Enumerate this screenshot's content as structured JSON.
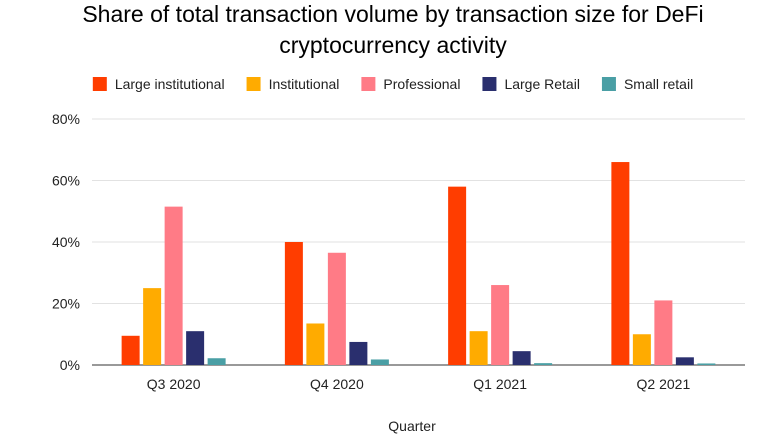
{
  "chart_data": {
    "type": "bar",
    "title_line1": "Share of total transaction volume by transaction size for DeFi",
    "title_line2": "cryptocurrency activity",
    "xlabel": "Quarter",
    "ylabel": "",
    "categories": [
      "Q3 2020",
      "Q4 2020",
      "Q1 2021",
      "Q2 2021"
    ],
    "series": [
      {
        "name": "Large institutional",
        "color": "#ff3d00",
        "values": [
          9.5,
          40,
          58,
          66
        ]
      },
      {
        "name": "Institutional",
        "color": "#ffab00",
        "values": [
          25,
          13.5,
          11,
          10
        ]
      },
      {
        "name": "Professional",
        "color": "#ff7b86",
        "values": [
          51.5,
          36.5,
          26,
          21
        ]
      },
      {
        "name": "Large Retail",
        "color": "#2a2f6e",
        "values": [
          11,
          7.5,
          4.5,
          2.5
        ]
      },
      {
        "name": "Small retail",
        "color": "#4a9fa5",
        "values": [
          2.2,
          1.8,
          0.6,
          0.5
        ]
      }
    ],
    "ylim": [
      0,
      80
    ],
    "yticks": [
      0,
      20,
      40,
      60,
      80
    ],
    "ytick_labels": [
      "0%",
      "20%",
      "40%",
      "60%",
      "80%"
    ],
    "grid": "horizontal",
    "legend_position": "top"
  }
}
